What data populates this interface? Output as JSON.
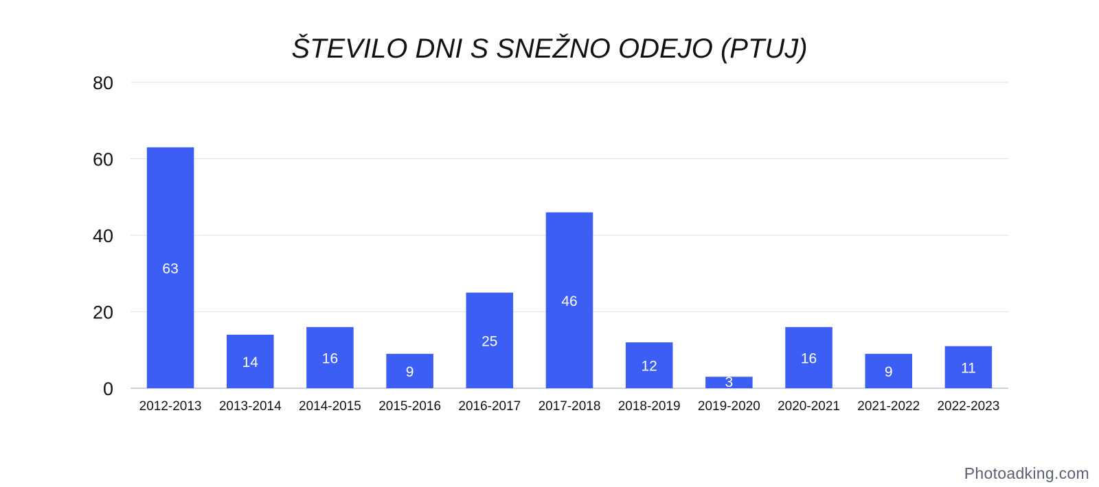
{
  "chart_data": {
    "type": "bar",
    "title": "ŠTEVILO DNI S SNEŽNO ODEJO (PTUJ)",
    "xlabel": "",
    "ylabel": "",
    "categories": [
      "2012-2013",
      "2013-2014",
      "2014-2015",
      "2015-2016",
      "2016-2017",
      "2017-2018",
      "2018-2019",
      "2019-2020",
      "2020-2021",
      "2021-2022",
      "2022-2023"
    ],
    "values": [
      63,
      14,
      16,
      9,
      25,
      46,
      12,
      3,
      16,
      9,
      11
    ],
    "ylim": [
      0,
      80
    ],
    "yticks": [
      0,
      20,
      40,
      60,
      80
    ],
    "grid": true,
    "legend": "none",
    "data_labels": true,
    "colors": {
      "bar": "#3d5ef5",
      "label": "#ffffff",
      "grid": "#dfe3ea",
      "text": "#111111"
    }
  },
  "watermark": "Photoadking.com"
}
